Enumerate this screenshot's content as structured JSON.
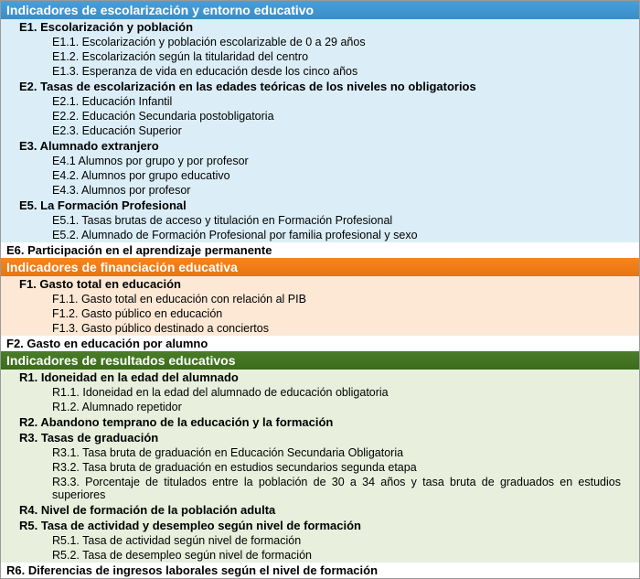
{
  "s1": {
    "header": "Indicadores de escolarización y entorno educativo",
    "e1": {
      "title": "E1. Escolarización y población",
      "i1": "E1.1. Escolarización y población escolarizable de 0 a 29 años",
      "i2": "E1.2. Escolarización según la titularidad del centro",
      "i3": "E1.3. Esperanza de vida en educación desde los cinco años"
    },
    "e2": {
      "title": "E2. Tasas de escolarización en las edades teóricas de los niveles no obligatorios",
      "i1": "E2.1. Educación Infantil",
      "i2": "E2.2. Educación Secundaria postobligatoria",
      "i3": "E2.3. Educación Superior"
    },
    "e3": {
      "title": "E3. Alumnado extranjero",
      "i1": "E4.1 Alumnos por grupo y por profesor",
      "i2": "E4.2. Alumnos por grupo educativo",
      "i3": "E4.3. Alumnos por profesor"
    },
    "e5": {
      "title": "E5. La Formación Profesional",
      "i1": "E5.1. Tasas brutas de acceso y titulación en Formación Profesional",
      "i2": "E5.2. Alumnado de Formación Profesional por familia profesional y sexo"
    },
    "e6": "E6. Participación en el aprendizaje permanente"
  },
  "s2": {
    "header": "Indicadores de financiación educativa",
    "f1": {
      "title": "F1. Gasto total en educación",
      "i1": "F1.1. Gasto total en educación con relación al PIB",
      "i2": "F1.2. Gasto público en educación",
      "i3": "F1.3. Gasto público destinado a conciertos"
    },
    "f2": "F2. Gasto en educación por alumno"
  },
  "s3": {
    "header": "Indicadores de resultados educativos",
    "r1": {
      "title": "R1. Idoneidad en la edad del alumnado",
      "i1": "R1.1. Idoneidad en la edad del alumnado de educación obligatoria",
      "i2": "R1.2. Alumnado repetidor"
    },
    "r2": "R2. Abandono temprano de la educación y la formación",
    "r3": {
      "title": "R3. Tasas de graduación",
      "i1": "R3.1. Tasa bruta de graduación en Educación Secundaria Obligatoria",
      "i2": "R3.2. Tasa bruta de graduación en estudios secundarios segunda etapa",
      "i3": "R3.3. Porcentaje de titulados entre la población de 30 a 34 años y tasa bruta de graduados en estudios superiores"
    },
    "r4": "R4. Nivel de formación de la población adulta",
    "r5": {
      "title": "R5. Tasa de actividad y desempleo según nivel de formación",
      "i1": "R5.1. Tasa de actividad según nivel de formación",
      "i2": "R5.2. Tasa de desempleo según nivel de formación"
    },
    "r6": "R6. Diferencias de ingresos laborales según el nivel de formación"
  },
  "colors": {
    "blue_header": "#4a9ed8",
    "blue_body": "#dbeef8",
    "orange_header": "#f5851f",
    "orange_body": "#fce8d5",
    "green_header": "#4a7c2a",
    "green_body": "#e8f0dd"
  }
}
